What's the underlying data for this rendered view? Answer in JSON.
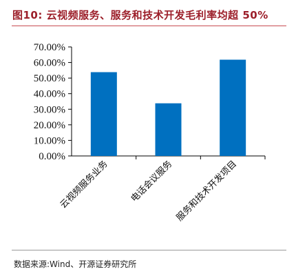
{
  "title": "图10:  云视频服务、服务和技术开发毛利率均超 50%",
  "source": "数据来源:Wind、开源证券研究所",
  "chart_data": {
    "type": "bar",
    "categories": [
      "云视频服务业务",
      "电话会议服务",
      "服务和技术开发项目"
    ],
    "values": [
      0.538,
      0.338,
      0.618
    ],
    "ylim": [
      0,
      0.7
    ],
    "yticks": [
      "0.00%",
      "10.00%",
      "20.00%",
      "30.00%",
      "40.00%",
      "50.00%",
      "60.00%",
      "70.00%"
    ],
    "bar_color": "#0070c0",
    "grid": false,
    "legend": "none"
  }
}
